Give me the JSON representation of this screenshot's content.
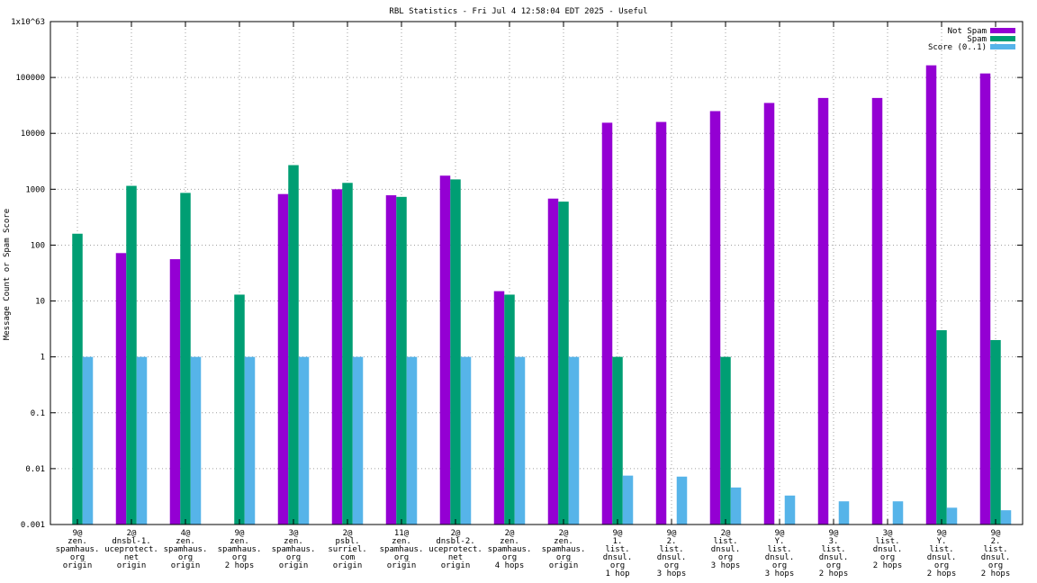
{
  "chart_data": {
    "type": "bar",
    "title": "RBL Statistics - Fri Jul  4 12:58:04 EDT 2025 - Useful",
    "ylabel": "Message Count or Spam Score",
    "xlabel": "",
    "yscale": "log",
    "ylim": [
      0.001,
      1e+63
    ],
    "ytick_labels": [
      "0.001",
      "0.01",
      "0.1",
      "1",
      "10",
      "100",
      "1000",
      "10000",
      "100000",
      "1x10^63"
    ],
    "legend_position": "top-right",
    "grid": true,
    "categories": [
      [
        "9@",
        "zen.",
        "spamhaus.",
        "org",
        "origin"
      ],
      [
        "2@",
        "dnsbl-1.",
        "uceprotect.",
        "net",
        "origin"
      ],
      [
        "4@",
        "zen.",
        "spamhaus.",
        "org",
        "origin"
      ],
      [
        "9@",
        "zen.",
        "spamhaus.",
        "org",
        "2 hops"
      ],
      [
        "3@",
        "zen.",
        "spamhaus.",
        "org",
        "origin"
      ],
      [
        "2@",
        "psbl.",
        "surriel.",
        "com",
        "origin"
      ],
      [
        "11@",
        "zen.",
        "spamhaus.",
        "org",
        "origin"
      ],
      [
        "2@",
        "dnsbl-2.",
        "uceprotect.",
        "net",
        "origin"
      ],
      [
        "2@",
        "zen.",
        "spamhaus.",
        "org",
        "4 hops"
      ],
      [
        "2@",
        "zen.",
        "spamhaus.",
        "org",
        "origin"
      ],
      [
        "9@",
        "1.",
        "list.",
        "dnsul.",
        "org",
        "1 hop"
      ],
      [
        "9@",
        "2.",
        "list.",
        "dnsul.",
        "org",
        "3 hops"
      ],
      [
        "2@",
        "list.",
        "dnsul.",
        "org",
        "3 hops"
      ],
      [
        "9@",
        "Y.",
        "list.",
        "dnsul.",
        "org",
        "3 hops"
      ],
      [
        "9@",
        "3.",
        "list.",
        "dnsul.",
        "org",
        "2 hops"
      ],
      [
        "3@",
        "list.",
        "dnsul.",
        "org",
        "2 hops"
      ],
      [
        "9@",
        "Y.",
        "list.",
        "dnsul.",
        "org",
        "2 hops"
      ],
      [
        "9@",
        "2.",
        "list.",
        "dnsul.",
        "org",
        "2 hops"
      ]
    ],
    "series": [
      {
        "name": "Not Spam",
        "color": "#9400d3",
        "values": [
          null,
          72,
          56,
          null,
          820,
          1000,
          780,
          1750,
          15,
          680,
          15500,
          16000,
          25000,
          35000,
          43000,
          43000,
          165000,
          118000
        ]
      },
      {
        "name": "Spam",
        "color": "#009e73",
        "values": [
          160,
          1150,
          860,
          13,
          2700,
          1300,
          730,
          1500,
          13,
          600,
          1,
          null,
          1,
          null,
          null,
          null,
          3,
          2
        ]
      },
      {
        "name": "Score (0..1)",
        "color": "#56b4e9",
        "values": [
          1,
          1,
          1,
          1,
          1,
          1,
          1,
          1,
          1,
          1,
          0.0075,
          0.0072,
          0.0046,
          0.0033,
          0.0026,
          0.0026,
          0.002,
          0.0018
        ]
      }
    ]
  }
}
